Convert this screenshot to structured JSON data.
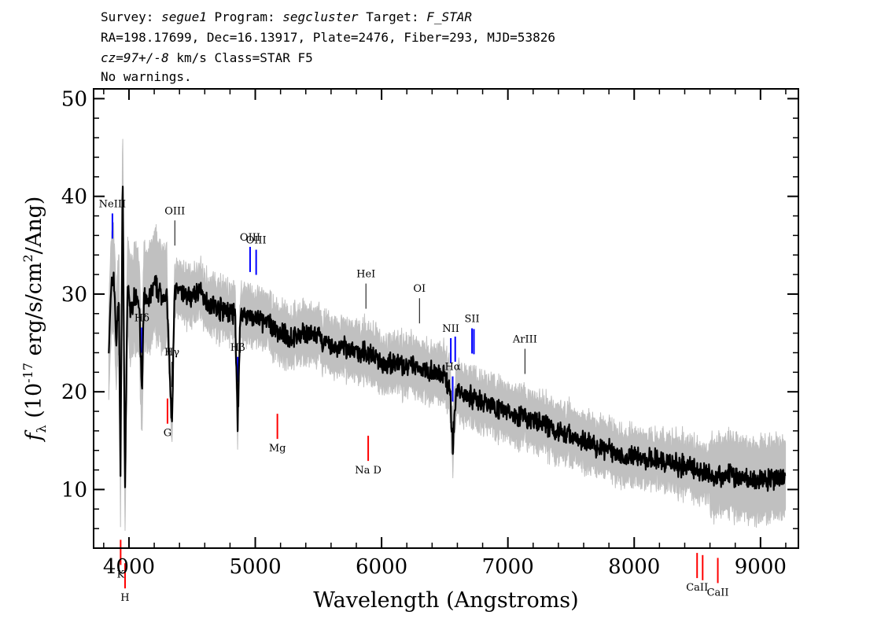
{
  "header": {
    "survey_label": "Survey:",
    "survey": "segue1",
    "program_label": "Program:",
    "program": "segcluster",
    "target_label": "Target:",
    "target": "F_STAR",
    "line2": "RA=198.17699, Dec=16.13917, Plate=2476, Fiber=293, MJD=53826",
    "cz": "cz=97+/-8",
    "line3_rest": " km/s Class=STAR F5",
    "line4": "No warnings."
  },
  "chart_data": {
    "type": "line",
    "xlabel": "Wavelength (Angstroms)",
    "ylabel": "f_λ (10^-17 erg/s/cm^2/Ang)",
    "xlim": [
      3720,
      9300
    ],
    "ylim": [
      4,
      51
    ],
    "xticks": [
      4000,
      5000,
      6000,
      7000,
      8000,
      9000
    ],
    "yticks": [
      10,
      20,
      30,
      40,
      50
    ],
    "grid": false,
    "legend": "none",
    "colors": {
      "flux": "#000000",
      "error_band": "#c0c0c0",
      "emission": "#0000ff",
      "absorption": "#ff0000",
      "sky": "#000000"
    },
    "series": [
      {
        "x": [
          3840,
          3860,
          3880,
          3900,
          3920,
          3933,
          3950,
          3968,
          3990,
          4010,
          4050,
          4080,
          4102,
          4120,
          4150,
          4200,
          4250,
          4300,
          4340,
          4360,
          4400,
          4450,
          4500,
          4550,
          4600,
          4650,
          4700,
          4750,
          4800,
          4840,
          4861,
          4880,
          4920,
          5000,
          5100,
          5200,
          5300,
          5400,
          5500,
          5600,
          5700,
          5800,
          5900,
          6000,
          6100,
          6200,
          6300,
          6400,
          6500,
          6540,
          6563,
          6590,
          6650,
          6700,
          6800,
          6900,
          7000,
          7100,
          7200,
          7300,
          7400,
          7500,
          7600,
          7700,
          7800,
          7900,
          8000,
          8100,
          8200,
          8300,
          8400,
          8500,
          8600,
          8700,
          8800,
          8900,
          9000,
          9100,
          9200
        ],
        "y": [
          24.5,
          30.5,
          32,
          25,
          30,
          11.5,
          43,
          10,
          31,
          28,
          30,
          29.5,
          19.5,
          30,
          29,
          31,
          30,
          29.5,
          16,
          30.5,
          30,
          30,
          29.5,
          30.5,
          29.5,
          29,
          28.5,
          28.5,
          28,
          28,
          16.5,
          27.5,
          28,
          27.5,
          27,
          26,
          25.5,
          26,
          25.5,
          24.5,
          24.5,
          24,
          24,
          23,
          23,
          22.5,
          22.5,
          22,
          21.5,
          20.5,
          14.5,
          20,
          20,
          19.5,
          19,
          18.5,
          18,
          17.5,
          17,
          16.5,
          16,
          15.5,
          15,
          14.5,
          14,
          13.5,
          13.5,
          13,
          13,
          12.5,
          12.5,
          12,
          11.5,
          11.5,
          11.5,
          11,
          11,
          11,
          11
        ]
      }
    ],
    "lines": [
      {
        "label": "NeIII",
        "x": 3869,
        "color": "blue"
      },
      {
        "label": "Hδ",
        "x": 4102,
        "color": "blue"
      },
      {
        "label": "Hγ",
        "x": 4340,
        "color": "black"
      },
      {
        "label": "OIII",
        "x": 4363,
        "color": "black"
      },
      {
        "label": "Hβ",
        "x": 4861,
        "color": "blue"
      },
      {
        "label": "OIII",
        "x": 4959,
        "color": "blue"
      },
      {
        "label": "OIII",
        "x": 5007,
        "color": "blue"
      },
      {
        "label": "HeI",
        "x": 5876,
        "color": "black"
      },
      {
        "label": "OI",
        "x": 6300,
        "color": "black"
      },
      {
        "label": "NII",
        "x": 6548,
        "color": "blue"
      },
      {
        "label": "Hα",
        "x": 6563,
        "color": "blue"
      },
      {
        "label": "NII",
        "x": 6583,
        "color": "blue"
      },
      {
        "label": "SII",
        "x": 6716,
        "color": "blue"
      },
      {
        "label": "SII",
        "x": 6731,
        "color": "blue"
      },
      {
        "label": "ArIII",
        "x": 7135,
        "color": "black"
      },
      {
        "label": "K",
        "x": 3934,
        "color": "red"
      },
      {
        "label": "H",
        "x": 3969,
        "color": "red"
      },
      {
        "label": "G",
        "x": 4305,
        "color": "red"
      },
      {
        "label": "Mg",
        "x": 5175,
        "color": "red"
      },
      {
        "label": "Na D",
        "x": 5894,
        "color": "red"
      },
      {
        "label": "CaII",
        "x": 8498,
        "color": "red"
      },
      {
        "label": "CaII",
        "x": 8542,
        "color": "red"
      },
      {
        "label": "CaII",
        "x": 8662,
        "color": "red"
      }
    ]
  }
}
